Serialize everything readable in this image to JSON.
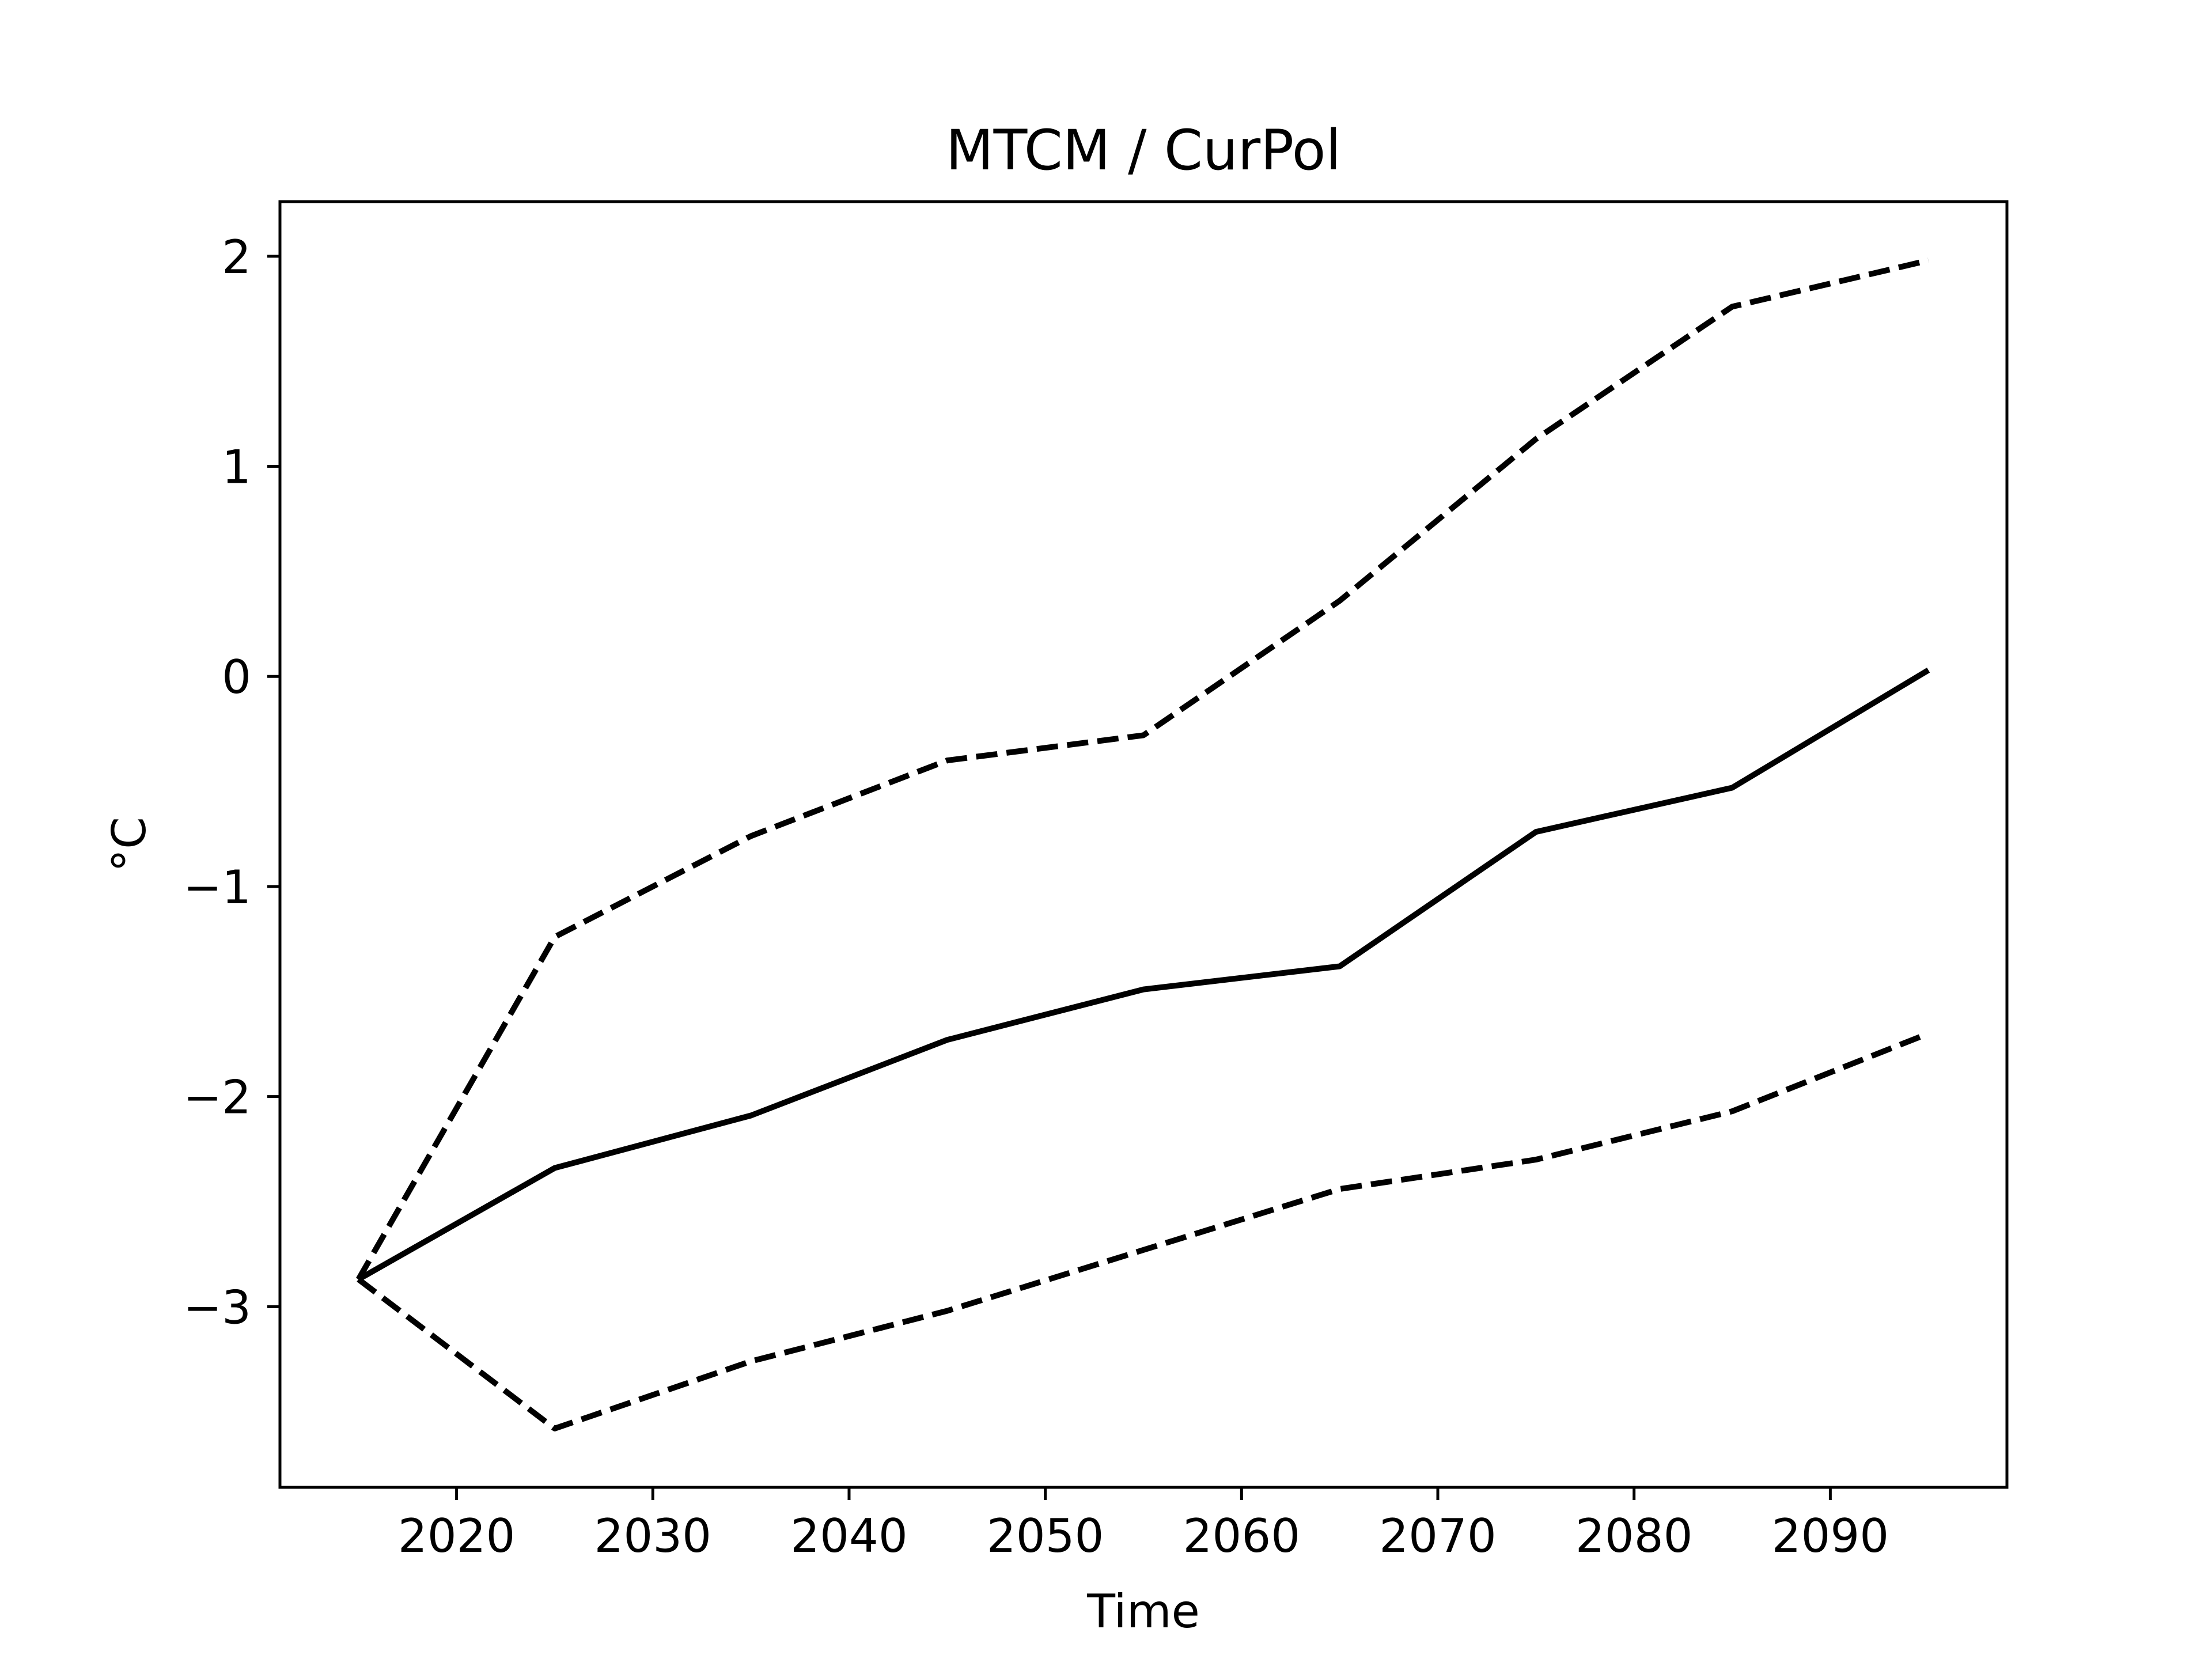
{
  "chart_data": {
    "type": "line",
    "title": "MTCM / CurPol",
    "xlabel": "Time",
    "ylabel": "°C",
    "x": [
      2015,
      2025,
      2035,
      2045,
      2055,
      2065,
      2075,
      2085,
      2095
    ],
    "series": [
      {
        "style": "dashed",
        "color": "#000000",
        "values": [
          -2.87,
          -1.24,
          -0.76,
          -0.4,
          -0.28,
          0.36,
          1.13,
          1.76,
          1.98
        ]
      },
      {
        "style": "solid",
        "color": "#000000",
        "values": [
          -2.87,
          -2.34,
          -2.09,
          -1.73,
          -1.49,
          -1.38,
          -0.74,
          -0.53,
          0.03
        ]
      },
      {
        "style": "dashed",
        "color": "#000000",
        "values": [
          -2.87,
          -3.58,
          -3.26,
          -3.02,
          -2.73,
          -2.44,
          -2.3,
          -2.07,
          -1.7
        ]
      }
    ],
    "xlim": [
      2011,
      2099
    ],
    "ylim": [
      -3.86,
      2.26
    ],
    "xticks": [
      2020,
      2030,
      2040,
      2050,
      2060,
      2070,
      2080,
      2090
    ],
    "yticks": [
      2,
      1,
      0,
      -1,
      -2,
      -3
    ],
    "yticklabels": [
      "2",
      "1",
      "0",
      "−1",
      "−2",
      "−3"
    ],
    "grid": false,
    "legend": false
  }
}
